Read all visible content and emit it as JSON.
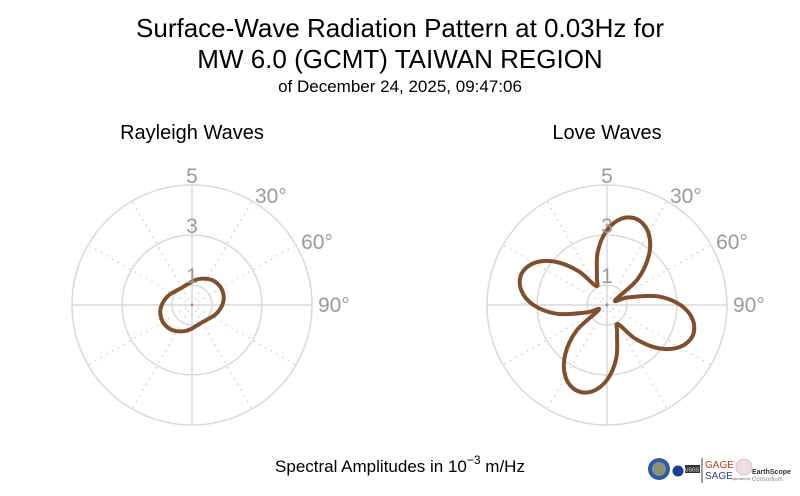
{
  "chart_data": [
    {
      "type": "polar-line",
      "title": "Rayleigh Waves",
      "angle_convention": "0° at top, clockwise",
      "theta_deg": [
        0,
        10,
        20,
        30,
        40,
        50,
        60,
        70,
        80,
        90,
        100,
        110,
        120,
        130,
        140,
        150,
        160,
        170,
        180,
        190,
        200,
        210,
        220,
        230,
        240,
        250,
        260,
        270,
        280,
        290,
        300,
        310,
        320,
        330,
        340,
        350
      ],
      "values": [
        1.14,
        1.23,
        1.32,
        1.41,
        1.49,
        1.53,
        1.55,
        1.53,
        1.49,
        1.41,
        1.32,
        1.23,
        1.14,
        1.06,
        1.02,
        1.0,
        1.02,
        1.06,
        1.14,
        1.23,
        1.32,
        1.41,
        1.49,
        1.53,
        1.55,
        1.53,
        1.49,
        1.41,
        1.32,
        1.23,
        1.14,
        1.06,
        1.02,
        1.0,
        1.02,
        1.06
      ],
      "rlim": [
        0.2,
        5
      ],
      "r_ticks": [
        "1",
        "3",
        "5"
      ],
      "r_tick_values": [
        1,
        3,
        5
      ],
      "theta_tick_labels": [
        "30°",
        "60°",
        "90°"
      ],
      "theta_tick_values": [
        30,
        60,
        90
      ]
    },
    {
      "type": "polar-line",
      "title": "Love Waves",
      "angle_convention": "0° at top, clockwise",
      "theta_deg": [
        0,
        10,
        20,
        30,
        40,
        50,
        60,
        70,
        80,
        90,
        100,
        110,
        120,
        130,
        140,
        150,
        160,
        170,
        180,
        190,
        200,
        210,
        220,
        230,
        240,
        250,
        260,
        270,
        280,
        290,
        300,
        310,
        320,
        330,
        340,
        350
      ],
      "values": [
        3.2,
        3.72,
        3.83,
        3.52,
        2.81,
        1.79,
        0.58,
        1.08,
        2.23,
        3.14,
        3.69,
        3.84,
        3.56,
        2.89,
        1.96,
        1.08,
        1.38,
        2.35,
        3.2,
        3.72,
        3.83,
        3.52,
        2.81,
        1.79,
        0.58,
        1.08,
        2.23,
        3.14,
        3.69,
        3.84,
        3.56,
        2.89,
        1.96,
        1.08,
        1.38,
        2.35
      ],
      "rlim": [
        0.2,
        5
      ],
      "r_ticks": [
        "1",
        "3",
        "5"
      ],
      "r_tick_values": [
        1,
        3,
        5
      ],
      "theta_tick_labels": [
        "30°",
        "60°",
        "90°"
      ],
      "theta_tick_values": [
        30,
        60,
        90
      ]
    }
  ],
  "header": {
    "title_line1": "Surface-Wave Radiation Pattern at 0.03Hz for",
    "title_line2": "MW 6.0 (GCMT) TAIWAN REGION",
    "subtitle": "of December 24, 2025, 09:47:06"
  },
  "xlabel": {
    "prefix": "Spectral Amplitudes in 10",
    "exponent": "−3",
    "suffix": " m/Hz"
  },
  "logos": {
    "gage": "GAGE",
    "sage": "SAGE",
    "earthscope": "EarthScope",
    "consortium": "Consortium",
    "operated": "Operated by",
    "usgs": "USGS"
  },
  "colors": {
    "line": "#7f4f2e",
    "grid": "#d9d9d9",
    "tick": "#9a9a9a",
    "gage": "#c0392b",
    "sage": "#3b3b8f"
  }
}
